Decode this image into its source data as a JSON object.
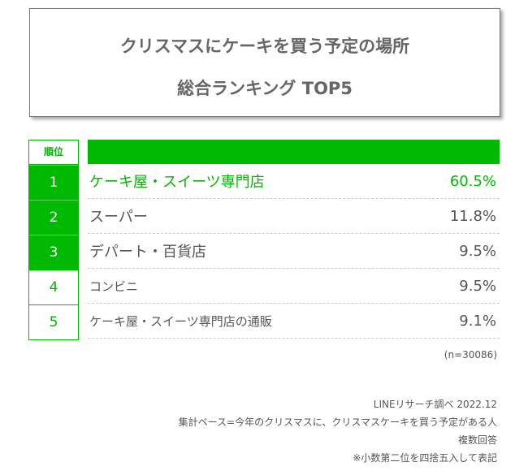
{
  "title": {
    "line1": "クリスマスにケーキを買う予定の場所",
    "line2": "総合ランキング TOP5"
  },
  "table": {
    "rank_header": "順位",
    "rows": [
      {
        "rank": "1",
        "name": "ケーキ屋・スイーツ専門店",
        "value": "60.5%"
      },
      {
        "rank": "2",
        "name": "スーパー",
        "value": "11.8%"
      },
      {
        "rank": "3",
        "name": "デパート・百貨店",
        "value": "9.5%"
      },
      {
        "rank": "4",
        "name": "コンビニ",
        "value": "9.5%"
      },
      {
        "rank": "5",
        "name": "ケーキ屋・スイーツ専門店の通販",
        "value": "9.1%"
      }
    ]
  },
  "sample": "(n=30086)",
  "footer": {
    "source": "LINEリサーチ調べ 2022.12",
    "base": "集計ベース=今年のクリスマスに、クリスマスケーキを買う予定がある人",
    "type": "複数回答",
    "note": "※小数第二位を四捨五入して表記"
  },
  "colors": {
    "accent": "#00b900",
    "text": "#555555"
  }
}
